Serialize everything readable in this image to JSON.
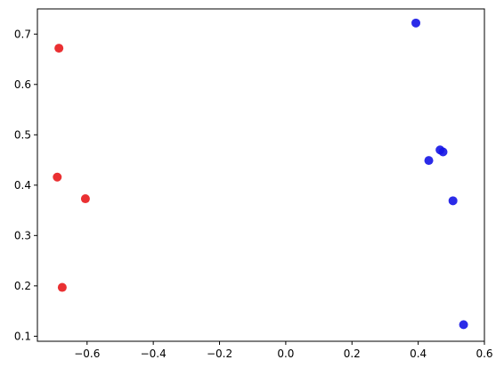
{
  "chart_data": {
    "type": "scatter",
    "title": "",
    "xlabel": "",
    "ylabel": "",
    "xlim": [
      -0.75,
      0.6
    ],
    "ylim": [
      0.09,
      0.75
    ],
    "x_ticks": [
      -0.6,
      -0.4,
      -0.2,
      0.0,
      0.2,
      0.4,
      0.6
    ],
    "x_tick_labels": [
      "−0.6",
      "−0.4",
      "−0.2",
      "0.0",
      "0.2",
      "0.4",
      "0.6"
    ],
    "y_ticks": [
      0.1,
      0.2,
      0.3,
      0.4,
      0.5,
      0.6,
      0.7
    ],
    "y_tick_labels": [
      "0.1",
      "0.2",
      "0.3",
      "0.4",
      "0.5",
      "0.6",
      "0.7"
    ],
    "grid": false,
    "series": [
      {
        "color": "#e8191c",
        "points": [
          {
            "x": -0.685,
            "y": 0.672
          },
          {
            "x": -0.69,
            "y": 0.416
          },
          {
            "x": -0.605,
            "y": 0.373
          },
          {
            "x": -0.675,
            "y": 0.197
          }
        ]
      },
      {
        "color": "#1414e6",
        "points": [
          {
            "x": 0.393,
            "y": 0.722
          },
          {
            "x": 0.466,
            "y": 0.47
          },
          {
            "x": 0.475,
            "y": 0.466
          },
          {
            "x": 0.432,
            "y": 0.449
          },
          {
            "x": 0.505,
            "y": 0.369
          },
          {
            "x": 0.537,
            "y": 0.123
          }
        ]
      }
    ]
  }
}
